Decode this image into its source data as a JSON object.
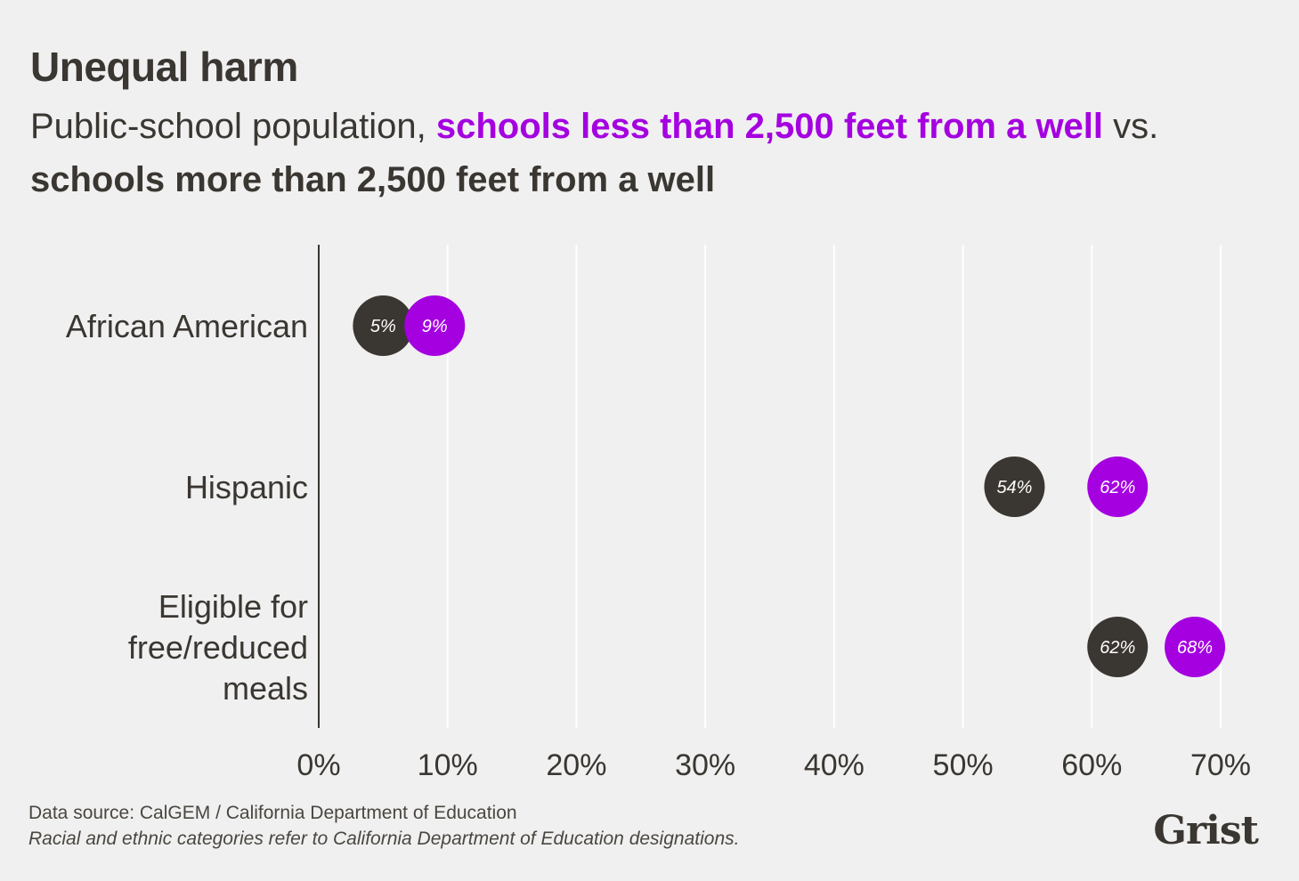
{
  "header": {
    "title": "Unequal harm",
    "subtitle_prefix": "Public-school population, ",
    "subtitle_highlight_near": "schools less than 2,500 feet from a well",
    "subtitle_vs": " vs. ",
    "subtitle_highlight_far": "schools more than 2,500 feet from a well"
  },
  "colors": {
    "near": "#a400e0",
    "far": "#3a3631",
    "grid": "#ffffff",
    "axis": "#3a3631",
    "background": "#f0f0f0"
  },
  "chart_data": {
    "type": "dot",
    "title": "Unequal harm",
    "categories": [
      [
        "African American"
      ],
      [
        "Hispanic"
      ],
      [
        "Eligible for",
        "free/reduced",
        "meals"
      ]
    ],
    "series": [
      {
        "name": "schools more than 2,500 feet from a well",
        "values": [
          5,
          54,
          62
        ],
        "labels": [
          "5%",
          "54%",
          "62%"
        ]
      },
      {
        "name": "schools less than 2,500 feet from a well",
        "values": [
          9,
          62,
          68
        ],
        "labels": [
          "9%",
          "62%",
          "68%"
        ]
      }
    ],
    "x_ticks": [
      0,
      10,
      20,
      30,
      40,
      50,
      60,
      70
    ],
    "x_tick_labels": [
      "0%",
      "10%",
      "20%",
      "30%",
      "40%",
      "50%",
      "60%",
      "70%"
    ],
    "xlim": [
      0,
      70
    ],
    "grid": true,
    "legend": "none"
  },
  "footer": {
    "source": "Data source: CalGEM / California Department of Education",
    "note": "Racial and ethnic categories refer to California Department of Education designations."
  },
  "logo": {
    "text": "Grist"
  }
}
